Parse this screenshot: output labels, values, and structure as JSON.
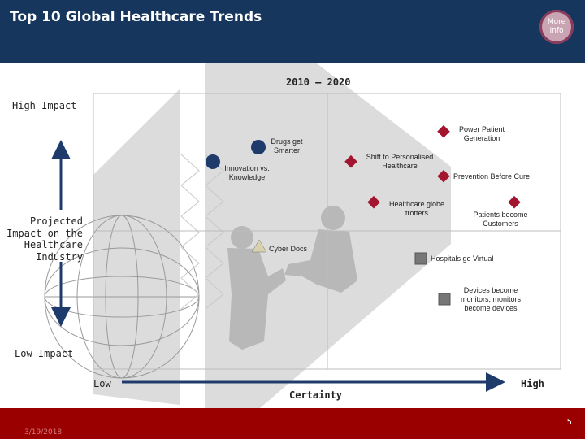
{
  "header": {
    "title": "Top 10 Global Healthcare Trends",
    "more_info_label": "More Info"
  },
  "period_label": "2010 – 2020",
  "y_axis": {
    "high": "High Impact",
    "low": "Low Impact",
    "label": "Projected\nImpact on the\nHealthcare\nIndustry"
  },
  "x_axis": {
    "low": "Low",
    "label": "Certainty",
    "high": "High"
  },
  "trends": {
    "drugs": "Drugs get\nSmarter",
    "innovation": "Innovation vs.\nKnowledge",
    "power_patient": "Power Patient\nGeneration",
    "personalised": "Shift to Personalised\nHealthcare",
    "prevention": "Prevention Before Cure",
    "globe_trotters": "Healthcare globe\ntrotters",
    "patients_customers": "Patients become\nCustomers",
    "cyber_docs": "Cyber Docs",
    "hospitals_virtual": "Hospitals go Virtual",
    "devices": "Devices become\nmonitors, monitors\nbecome devices"
  },
  "footer": {
    "date": "3/19/2018",
    "page_number": "5"
  },
  "colors": {
    "header_bg": "#17365d",
    "footer_bg": "#9a0000",
    "diamond": "#a3152f",
    "circle": "#1f3b6b",
    "square": "#777777",
    "triangle": "#d8d2ac"
  }
}
